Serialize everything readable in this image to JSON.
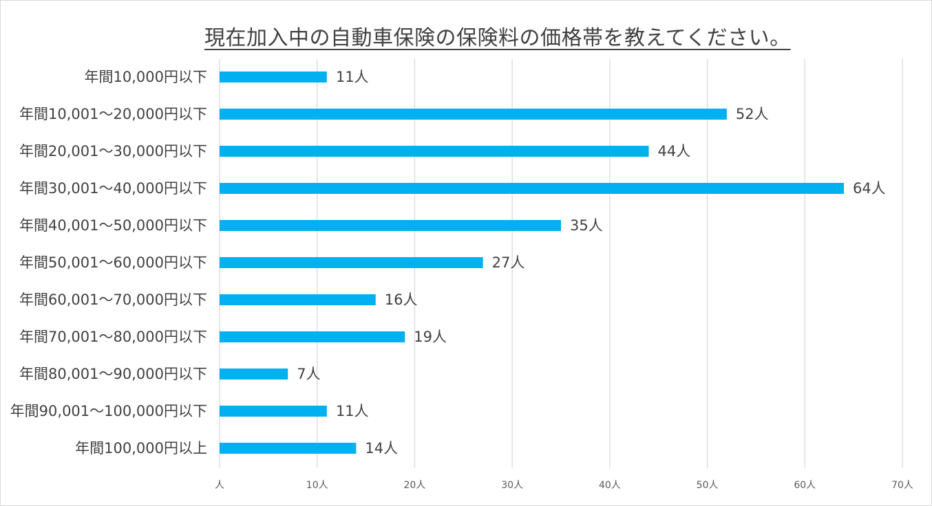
{
  "chart_data": {
    "type": "bar",
    "orientation": "horizontal",
    "title": "現在加入中の自動車保険の保険料の価格帯を教えてください。",
    "categories": [
      "年間10,000円以下",
      "年間10,001～20,000円以下",
      "年間20,001～30,000円以下",
      "年間30,001～40,000円以下",
      "年間40,001～50,000円以下",
      "年間50,001～60,000円以下",
      "年間60,001～70,000円以下",
      "年間70,001～80,000円以下",
      "年間80,001～90,000円以下",
      "年間90,001～100,000円以下",
      "年間100,000円以上"
    ],
    "values": [
      11,
      52,
      44,
      64,
      35,
      27,
      16,
      19,
      7,
      11,
      14
    ],
    "value_labels": [
      "11人",
      "52人",
      "44人",
      "64人",
      "35人",
      "27人",
      "16人",
      "19人",
      "7人",
      "11人",
      "14人"
    ],
    "xlim": [
      0,
      70
    ],
    "x_ticks": [
      0,
      10,
      20,
      30,
      40,
      50,
      60,
      70
    ],
    "x_tick_labels": [
      "人",
      "10人",
      "20人",
      "30人",
      "40人",
      "50人",
      "60人",
      "70人"
    ],
    "grid": "vertical",
    "bar_color": "#00B0F0",
    "xlabel": "",
    "ylabel": ""
  }
}
